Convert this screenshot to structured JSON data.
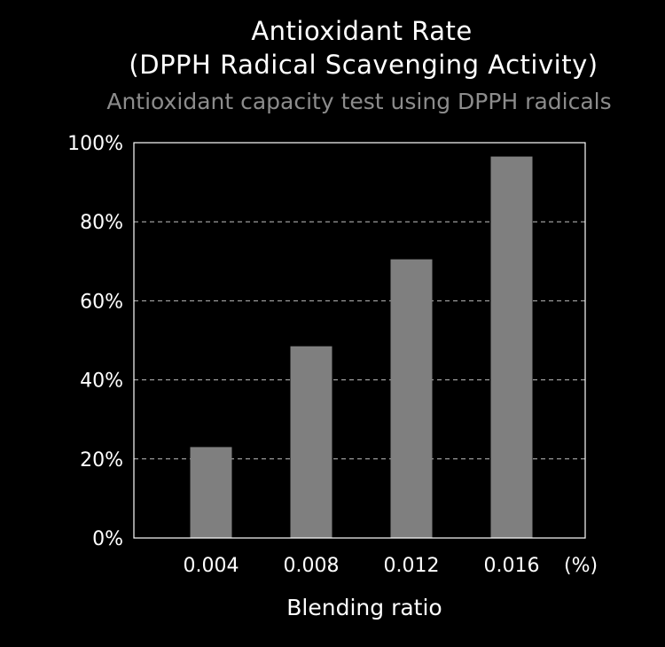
{
  "chart_data": {
    "type": "bar",
    "title": "Antioxidant Rate\n(DPPH Radical Scavenging Activity)",
    "title_lines": [
      "Antioxidant Rate",
      "(DPPH Radical Scavenging Activity)"
    ],
    "subtitle": "Antioxidant capacity test using DPPH radicals",
    "categories": [
      "0.004",
      "0.008",
      "0.012",
      "0.016"
    ],
    "x_unit_label": "(%)",
    "values": [
      23,
      48.5,
      70.5,
      96.5
    ],
    "xlabel": "Blending ratio",
    "ylabel": "",
    "ylim": [
      0,
      100
    ],
    "yticks": [
      0,
      20,
      40,
      60,
      80,
      100
    ],
    "ytick_labels": [
      "0%",
      "20%",
      "40%",
      "60%",
      "80%",
      "100%"
    ],
    "grid": true,
    "legend": "none",
    "colors": {
      "background": "#000000",
      "bar": "#7f7f7f",
      "axis": "#ffffff",
      "grid": "#bfbfbf",
      "text": "#ffffff",
      "subtitle": "#8c8c8c"
    }
  }
}
